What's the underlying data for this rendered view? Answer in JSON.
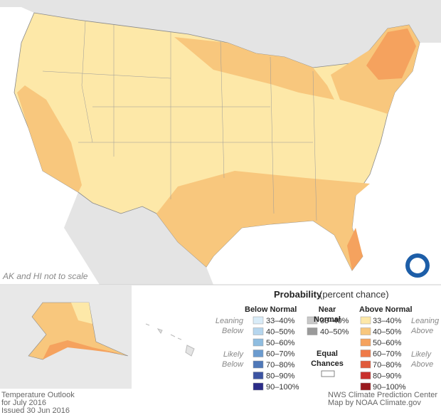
{
  "map": {
    "note": "AK and HI not to scale"
  },
  "legend": {
    "title": "Probability",
    "subtitle": "(percent chance)",
    "below": {
      "title": "Below Normal",
      "leaning": [
        "Leaning",
        "Below"
      ],
      "likely": [
        "Likely",
        "Below"
      ],
      "items": [
        {
          "label": "33–40%",
          "color": "#d9ecf8"
        },
        {
          "label": "40–50%",
          "color": "#b6d6ee"
        },
        {
          "label": "50–60%",
          "color": "#8fbde0"
        },
        {
          "label": "60–70%",
          "color": "#6b9bcf"
        },
        {
          "label": "70–80%",
          "color": "#4f78b8"
        },
        {
          "label": "80–90%",
          "color": "#3c54a2"
        },
        {
          "label": "90–100%",
          "color": "#2b2c88"
        }
      ]
    },
    "near": {
      "title": [
        "Near",
        "Normal"
      ],
      "items": [
        {
          "label": "33–40%",
          "color": "#c8c8c8"
        },
        {
          "label": "40–50%",
          "color": "#9a9a9a"
        }
      ]
    },
    "equal": {
      "title": [
        "Equal",
        "Chances"
      ],
      "color": "#ffffff"
    },
    "above": {
      "title": "Above Normal",
      "leaning": [
        "Leaning",
        "Above"
      ],
      "likely": [
        "Likely",
        "Above"
      ],
      "items": [
        {
          "label": "33–40%",
          "color": "#fde8a8"
        },
        {
          "label": "40–50%",
          "color": "#f8c77d"
        },
        {
          "label": "50–60%",
          "color": "#f5a25e"
        },
        {
          "label": "60–70%",
          "color": "#ef7a48"
        },
        {
          "label": "70–80%",
          "color": "#e05a3a"
        },
        {
          "label": "80–90%",
          "color": "#c8302c"
        },
        {
          "label": "90–100%",
          "color": "#9a1a1e"
        }
      ]
    }
  },
  "footer": {
    "left": [
      "Temperature Outlook",
      "for July 2016",
      "Issued 30 Jun 2016"
    ],
    "right": [
      "NWS Climate Prediction Center",
      "Map by NOAA Climate.gov"
    ]
  }
}
